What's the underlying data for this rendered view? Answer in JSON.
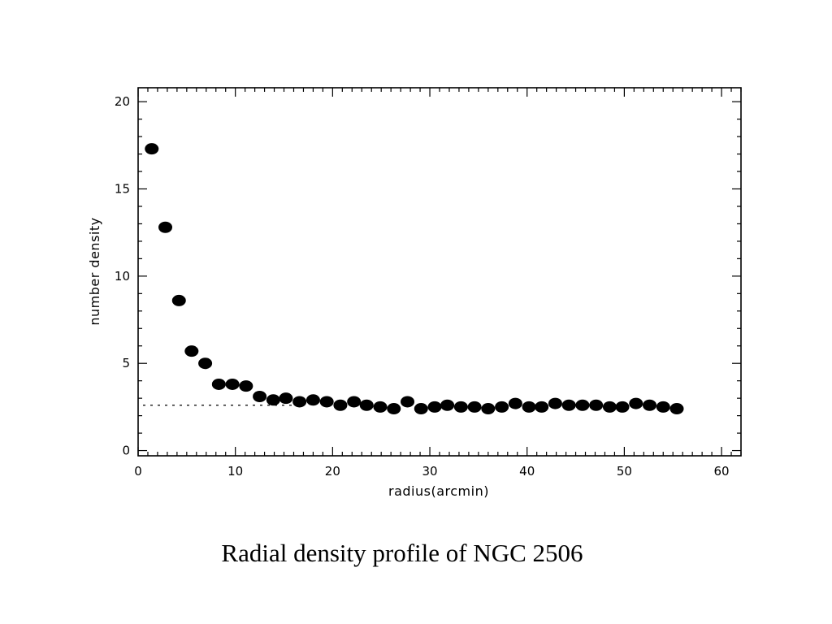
{
  "caption": "Radial density profile of NGC 2506",
  "chart_data": {
    "type": "scatter",
    "title": "",
    "xlabel": "radius(arcmin)",
    "ylabel": "number density",
    "xlim": [
      0,
      62
    ],
    "ylim": [
      -0.3,
      20.8
    ],
    "xticks": [
      0,
      10,
      20,
      30,
      40,
      50,
      60
    ],
    "yticks": [
      0,
      5,
      10,
      15,
      20
    ],
    "grid": false,
    "marker": "filled-circle",
    "marker_color": "#000000",
    "background_level": {
      "y": 2.6,
      "x_range": [
        0,
        16
      ],
      "style": "dotted"
    },
    "series": [
      {
        "x": [
          1.4,
          2.8,
          4.2,
          5.5,
          6.9,
          8.3,
          9.7,
          11.1,
          12.5,
          13.9,
          15.2,
          16.6,
          18.0,
          19.4,
          20.8,
          22.2,
          23.5,
          24.9,
          26.3,
          27.7,
          29.1,
          30.5,
          31.8,
          33.2,
          34.6,
          36.0,
          37.4,
          38.8,
          40.2,
          41.5,
          42.9,
          44.3,
          45.7,
          47.1,
          48.5,
          49.8,
          51.2,
          52.6,
          54.0,
          55.4
        ],
        "y": [
          17.3,
          12.8,
          8.6,
          5.7,
          5.0,
          3.8,
          3.8,
          3.7,
          3.1,
          2.9,
          3.0,
          2.8,
          2.9,
          2.8,
          2.6,
          2.8,
          2.6,
          2.5,
          2.4,
          2.8,
          2.4,
          2.5,
          2.6,
          2.5,
          2.5,
          2.4,
          2.5,
          2.7,
          2.5,
          2.5,
          2.7,
          2.6,
          2.6,
          2.6,
          2.5,
          2.5,
          2.7,
          2.6,
          2.5,
          2.4
        ]
      }
    ]
  }
}
